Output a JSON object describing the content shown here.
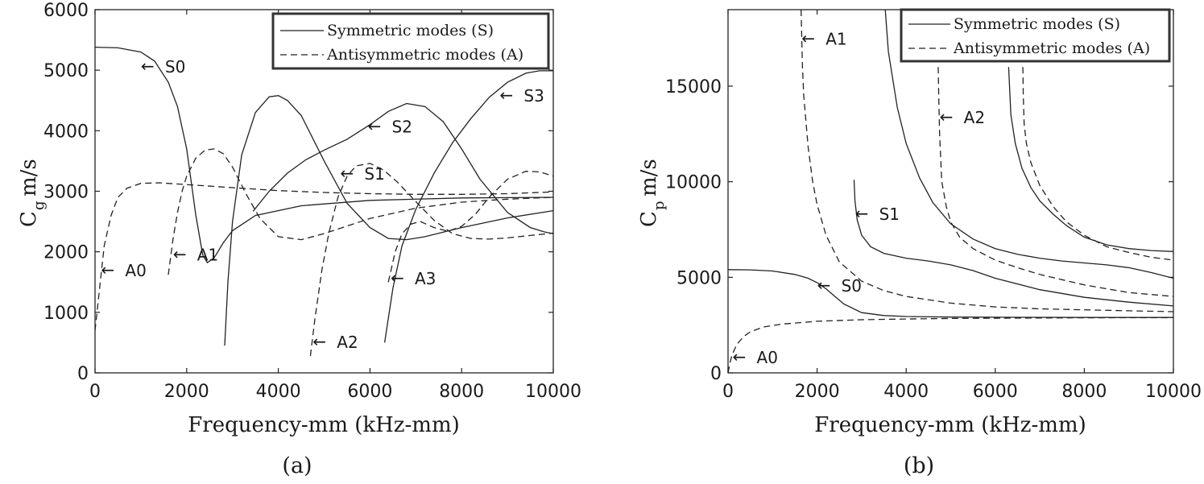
{
  "chart_data": [
    {
      "type": "line",
      "panel_caption": "(a)",
      "xlabel": "Frequency-mm (kHz-mm)",
      "ylabel": "C",
      "ylabel_sub": "g",
      "ylabel_unit": "m/s",
      "xlim": [
        0,
        10000
      ],
      "ylim": [
        0,
        6000
      ],
      "xticks": [
        "0",
        "2000",
        "4000",
        "6000",
        "8000",
        "10000"
      ],
      "yticks": [
        "0",
        "1000",
        "2000",
        "3000",
        "4000",
        "5000",
        "6000"
      ],
      "grid": false,
      "legend": {
        "placement": "top-right",
        "entries": [
          {
            "label": "Symmetric modes (S)",
            "style": "solid"
          },
          {
            "label": "Antisymmetric modes (A)",
            "style": "dashed"
          }
        ]
      },
      "series": [
        {
          "id": "S0",
          "style": "solid",
          "x": [
            0,
            500,
            1000,
            1300,
            1600,
            1800,
            2000,
            2200,
            2350,
            2450,
            2600,
            2800,
            3000,
            3500,
            4500,
            6000,
            8000,
            10000
          ],
          "y": [
            5380,
            5370,
            5300,
            5150,
            4800,
            4400,
            3700,
            2600,
            1950,
            1820,
            1900,
            2150,
            2350,
            2600,
            2760,
            2850,
            2890,
            2900
          ]
        },
        {
          "id": "S1",
          "style": "solid",
          "x": [
            2830,
            2900,
            3000,
            3200,
            3500,
            3800,
            4000,
            4200,
            4500,
            5000,
            5500,
            6000,
            6400,
            6800,
            7200,
            8000,
            9000,
            10000
          ],
          "y": [
            450,
            1500,
            2500,
            3600,
            4300,
            4560,
            4580,
            4500,
            4250,
            3500,
            2800,
            2400,
            2220,
            2200,
            2250,
            2400,
            2560,
            2680
          ]
        },
        {
          "id": "S2",
          "style": "solid",
          "x": [
            3450,
            3800,
            4200,
            4600,
            5000,
            5500,
            6000,
            6400,
            6800,
            7200,
            7600,
            8000,
            8400,
            9000,
            9500,
            9800,
            10000
          ],
          "y": [
            2670,
            3000,
            3300,
            3520,
            3680,
            3860,
            4100,
            4320,
            4450,
            4400,
            4150,
            3700,
            3200,
            2650,
            2400,
            2330,
            2300
          ]
        },
        {
          "id": "S3",
          "style": "solid",
          "x": [
            6320,
            6500,
            6700,
            7000,
            7400,
            7800,
            8200,
            8600,
            9000,
            9400,
            9700,
            10000
          ],
          "y": [
            500,
            1400,
            2100,
            2700,
            3300,
            3800,
            4200,
            4550,
            4800,
            4950,
            4990,
            4990
          ]
        },
        {
          "id": "A0",
          "style": "dashed",
          "x": [
            0,
            100,
            200,
            350,
            500,
            700,
            1000,
            1400,
            2000,
            3000,
            4000,
            5000,
            6000,
            7000,
            8000,
            9000,
            10000
          ],
          "y": [
            700,
            1400,
            2100,
            2600,
            2900,
            3050,
            3130,
            3140,
            3110,
            3060,
            3010,
            2980,
            2960,
            2950,
            2950,
            2960,
            2990
          ]
        },
        {
          "id": "A1",
          "style": "dashed",
          "x": [
            1600,
            1700,
            1800,
            1900,
            2000,
            2200,
            2400,
            2600,
            2800,
            3000,
            3300,
            3600,
            4000,
            4500,
            5000,
            6000,
            7000,
            8000,
            9000,
            10000
          ],
          "y": [
            1620,
            2200,
            2650,
            3000,
            3250,
            3550,
            3680,
            3700,
            3620,
            3400,
            2950,
            2550,
            2250,
            2200,
            2300,
            2550,
            2720,
            2820,
            2870,
            2900
          ]
        },
        {
          "id": "A2",
          "style": "dashed",
          "x": [
            4700,
            4800,
            4950,
            5100,
            5300,
            5500,
            5700,
            6000,
            6300,
            6600,
            7000,
            7400,
            7800,
            8200,
            8600,
            9000,
            9500,
            10000
          ],
          "y": [
            280,
            900,
            1700,
            2300,
            2900,
            3250,
            3420,
            3460,
            3350,
            3150,
            2830,
            2520,
            2300,
            2220,
            2210,
            2230,
            2270,
            2310
          ]
        },
        {
          "id": "A3",
          "style": "dashed",
          "x": [
            6400,
            6550,
            6700,
            6900,
            7100,
            7400,
            7700,
            8000,
            8300,
            8600,
            9000,
            9400,
            9700,
            10000
          ],
          "y": [
            1500,
            2000,
            2300,
            2460,
            2500,
            2400,
            2340,
            2420,
            2620,
            2900,
            3200,
            3330,
            3320,
            3250
          ]
        }
      ],
      "annotations": [
        {
          "text": "S0",
          "x": 1000,
          "y": 5070
        },
        {
          "text": "A1",
          "x": 1700,
          "y": 1960
        },
        {
          "text": "A0",
          "x": 130,
          "y": 1700
        },
        {
          "text": "S2",
          "x": 5950,
          "y": 4080
        },
        {
          "text": "S1",
          "x": 5350,
          "y": 3300
        },
        {
          "text": "A2",
          "x": 4750,
          "y": 520
        },
        {
          "text": "A3",
          "x": 6450,
          "y": 1570
        },
        {
          "text": "S3",
          "x": 8830,
          "y": 4590
        }
      ]
    },
    {
      "type": "line",
      "panel_caption": "(b)",
      "xlabel": "Frequency-mm (kHz-mm)",
      "ylabel": "C",
      "ylabel_sub": "p",
      "ylabel_unit": "m/s",
      "xlim": [
        0,
        10000
      ],
      "ylim": [
        0,
        19000
      ],
      "xticks": [
        "0",
        "2000",
        "4000",
        "6000",
        "8000",
        "10000"
      ],
      "yticks": [
        "0",
        "5000",
        "10000",
        "15000"
      ],
      "ytick_values": [
        0,
        5000,
        10000,
        15000
      ],
      "grid": false,
      "legend": {
        "placement": "top-right",
        "entries": [
          {
            "label": "Symmetric modes (S)",
            "style": "solid"
          },
          {
            "label": "Antisymmetric modes (A)",
            "style": "dashed"
          }
        ]
      },
      "series": [
        {
          "id": "S0",
          "style": "solid",
          "x": [
            0,
            500,
            1000,
            1500,
            1800,
            2000,
            2200,
            2400,
            2600,
            3000,
            3500,
            4000,
            5000,
            6000,
            8000,
            10000
          ],
          "y": [
            5400,
            5390,
            5330,
            5150,
            4950,
            4720,
            4400,
            4000,
            3600,
            3150,
            3000,
            2950,
            2920,
            2910,
            2900,
            2900
          ]
        },
        {
          "id": "S1",
          "style": "solid",
          "x": [
            2830,
            2850,
            2900,
            3000,
            3200,
            3500,
            4000,
            4500,
            5000,
            5500,
            6000,
            7000,
            8000,
            9000,
            10000
          ],
          "y": [
            10100,
            9000,
            8000,
            7200,
            6600,
            6250,
            6000,
            5850,
            5650,
            5350,
            4950,
            4350,
            3950,
            3700,
            3500
          ]
        },
        {
          "id": "S2",
          "style": "solid",
          "x": [
            3530,
            3600,
            3800,
            4000,
            4300,
            4600,
            5000,
            5500,
            6000,
            6500,
            7000,
            7500,
            8000,
            8500,
            9000,
            9500,
            10000
          ],
          "y": [
            19000,
            16800,
            13900,
            12000,
            10200,
            8900,
            7800,
            7000,
            6500,
            6200,
            6000,
            5850,
            5750,
            5650,
            5500,
            5250,
            4950
          ]
        },
        {
          "id": "S3",
          "style": "solid",
          "x": [
            6300,
            6350,
            6450,
            6600,
            6800,
            7000,
            7300,
            7600,
            8000,
            8500,
            9000,
            9500,
            10000
          ],
          "y": [
            16000,
            13500,
            12000,
            10700,
            9700,
            9000,
            8300,
            7700,
            7100,
            6700,
            6500,
            6400,
            6350
          ]
        },
        {
          "id": "A0",
          "style": "dashed",
          "x": [
            0,
            50,
            100,
            200,
            350,
            500,
            800,
            1200,
            2000,
            3000,
            4000,
            5000,
            6000,
            8000,
            10000
          ],
          "y": [
            0,
            600,
            1000,
            1500,
            1900,
            2150,
            2400,
            2550,
            2700,
            2780,
            2820,
            2850,
            2860,
            2880,
            2890
          ]
        },
        {
          "id": "A1",
          "style": "dashed",
          "x": [
            1640,
            1670,
            1700,
            1800,
            1900,
            2000,
            2200,
            2500,
            3000,
            3500,
            4000,
            5000,
            6000,
            7000,
            8000,
            9000,
            10000
          ],
          "y": [
            19000,
            16000,
            14500,
            11800,
            10000,
            8800,
            7200,
            5800,
            4800,
            4300,
            4000,
            3650,
            3450,
            3350,
            3300,
            3250,
            3200
          ]
        },
        {
          "id": "A2",
          "style": "dashed",
          "x": [
            4720,
            4730,
            4750,
            4800,
            4900,
            5000,
            5200,
            5500,
            6000,
            6500,
            7000,
            8000,
            9000,
            10000
          ],
          "y": [
            16000,
            14500,
            12500,
            10000,
            8700,
            7900,
            7100,
            6500,
            5900,
            5500,
            5150,
            4600,
            4200,
            4000
          ]
        },
        {
          "id": "A3",
          "style": "dashed",
          "x": [
            6620,
            6630,
            6650,
            6700,
            6800,
            7000,
            7300,
            7600,
            8000,
            8500,
            9000,
            9500,
            10000
          ],
          "y": [
            16000,
            14500,
            13000,
            12000,
            11000,
            9800,
            8700,
            7900,
            7200,
            6600,
            6300,
            6050,
            5900
          ]
        }
      ],
      "annotations": [
        {
          "text": "A1",
          "x": 1650,
          "y": 17500
        },
        {
          "text": "A2",
          "x": 4750,
          "y": 13400
        },
        {
          "text": "S1",
          "x": 2850,
          "y": 8350
        },
        {
          "text": "S0",
          "x": 2000,
          "y": 4600
        },
        {
          "text": "A0",
          "x": 100,
          "y": 850
        }
      ]
    }
  ]
}
